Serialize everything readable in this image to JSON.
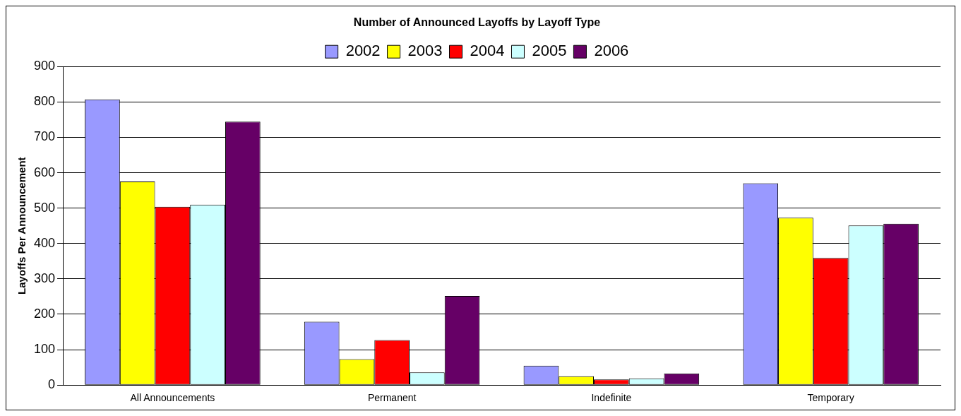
{
  "chart_data": {
    "type": "bar",
    "title": "Number of Announced Layoffs by Layoff Type",
    "ylabel": "Layoffs Per Announcement",
    "categories": [
      "All Announcements",
      "Permanent",
      "Indefinite",
      "Temporary"
    ],
    "series": [
      {
        "name": "2002",
        "color": "#9999ff",
        "values": [
          807,
          179,
          55,
          570
        ]
      },
      {
        "name": "2003",
        "color": "#ffff00",
        "values": [
          575,
          73,
          25,
          473
        ]
      },
      {
        "name": "2004",
        "color": "#ff0000",
        "values": [
          504,
          127,
          16,
          359
        ]
      },
      {
        "name": "2005",
        "color": "#ccffff",
        "values": [
          510,
          36,
          19,
          451
        ]
      },
      {
        "name": "2006",
        "color": "#660066",
        "values": [
          744,
          252,
          33,
          456
        ]
      }
    ],
    "ylim": [
      0,
      900
    ],
    "yticks": [
      0,
      100,
      200,
      300,
      400,
      500,
      600,
      700,
      800,
      900
    ],
    "grid": "y",
    "legend": "top"
  }
}
